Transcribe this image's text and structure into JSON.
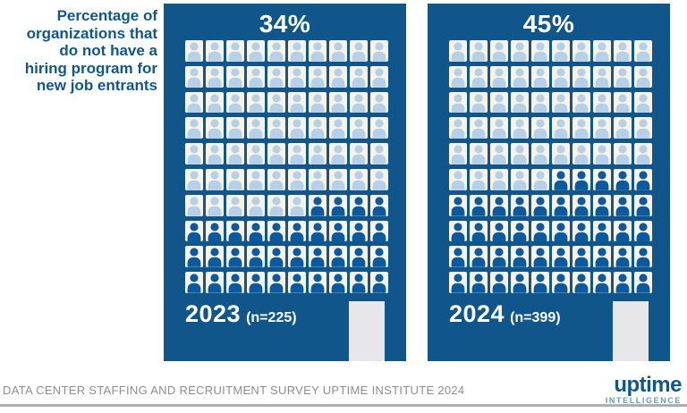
{
  "page": {
    "title_lines": [
      "Percentage of",
      "organizations that",
      "do not have a",
      "hiring program for",
      "new job entrants"
    ],
    "footer_caption": "DATA CENTER STAFFING AND RECRUITMENT SURVEY UPTIME INSTITUTE 2024",
    "logo": {
      "word": "uptime",
      "sub": "INTELLIGENCE"
    }
  },
  "chart_data": {
    "type": "waffle",
    "title": "Percentage of organizations that do not have a hiring program for new job entrants",
    "grid": {
      "rows": 10,
      "cols": 10,
      "unit_percent_per_icon": 1
    },
    "fill_order": "bottom rows first, partial row fills from the right",
    "series": [
      {
        "label": "2023",
        "n_label": "(n=225)",
        "n": 225,
        "percent": 34,
        "value_label": "34%"
      },
      {
        "label": "2024",
        "n_label": "(n=399)",
        "n": 399,
        "percent": 45,
        "value_label": "45%"
      }
    ]
  },
  "colors": {
    "panel_bg": "#11568A",
    "tile_bg": "#F8F3E4",
    "icon_unfilled": "#B5D0E9",
    "icon_filled": "#0B5AA0",
    "title_text": "#11568A",
    "value_text": "#FFFFFF",
    "footer_text": "#8D8D8D",
    "logo_main": "#11568A",
    "logo_sub": "#5B9CD6",
    "gray_box": "#E7E7E9",
    "rule": "#AFAFAF"
  }
}
